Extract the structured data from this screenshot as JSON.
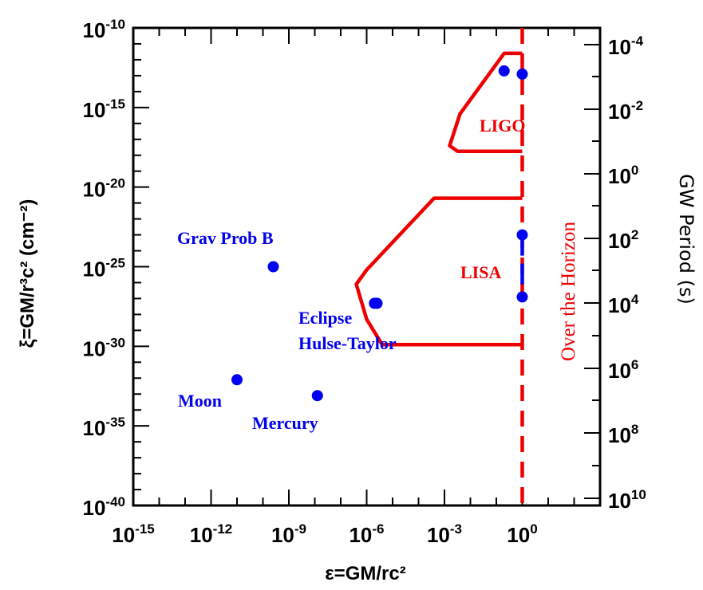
{
  "chart_data": {
    "type": "scatter",
    "x_axis": {
      "label": "ε=GM/rc²",
      "scale": "log",
      "range_exp": [
        -15,
        3
      ],
      "major_tick_exps": [
        -15,
        -12,
        -9,
        -6,
        -3,
        0
      ],
      "tick_labels": [
        "10⁻¹⁵",
        "10⁻¹²",
        "10⁻⁹",
        "10⁻⁶",
        "10⁻³",
        "10⁰"
      ]
    },
    "y_axis_left": {
      "label": "ξ=GM/r³c² (cm⁻²)",
      "scale": "log",
      "range_exp": [
        -40,
        -10
      ],
      "major_tick_exps": [
        -40,
        -35,
        -30,
        -25,
        -20,
        -15,
        -10
      ],
      "tick_labels": [
        "10⁻⁴⁰",
        "10⁻³⁵",
        "10⁻³⁰",
        "10⁻²⁵",
        "10⁻²⁰",
        "10⁻¹⁵",
        "10⁻¹⁰"
      ]
    },
    "y_axis_right": {
      "label": "GW Period (s)",
      "scale": "log",
      "tick_exps": [
        10,
        8,
        6,
        4,
        2,
        0,
        -2,
        -4
      ],
      "tick_labels": [
        "10¹⁰",
        "10⁸",
        "10⁶",
        "10⁴",
        "10²",
        "10⁰",
        "10⁻²",
        "10⁻⁴"
      ]
    },
    "points": [
      {
        "x_exp": -11.0,
        "y_exp": -32.1
      },
      {
        "x_exp": -9.6,
        "y_exp": -25.0
      },
      {
        "x_exp": -7.9,
        "y_exp": -33.1
      },
      {
        "x_exp": -5.7,
        "y_exp": -27.3
      },
      {
        "x_exp": -5.6,
        "y_exp": -27.3
      },
      {
        "x_exp": -0.7,
        "y_exp": -12.7
      },
      {
        "x_exp": 0.0,
        "y_exp": -12.9
      },
      {
        "x_exp": 0.0,
        "y_exp": -23.0
      },
      {
        "x_exp": 0.0,
        "y_exp": -26.9
      }
    ],
    "segments": [
      {
        "x_exp": [
          0.0,
          0.0
        ],
        "y_exp": [
          -23.0,
          -26.9
        ],
        "color": "#0000ee"
      }
    ],
    "regions": [
      {
        "label": "LIGO",
        "polyline_exp": [
          [
            0.0,
            -11.6
          ],
          [
            -0.7,
            -11.6
          ],
          [
            -2.4,
            -15.4
          ],
          [
            -2.8,
            -17.4
          ],
          [
            -2.5,
            -17.75
          ],
          [
            -1.6,
            -17.75
          ],
          [
            0.0,
            -17.75
          ]
        ]
      },
      {
        "label": "LISA",
        "polyline_exp": [
          [
            0.0,
            -20.7
          ],
          [
            -3.4,
            -20.7
          ],
          [
            -6.0,
            -25.2
          ],
          [
            -6.4,
            -26.1
          ],
          [
            -6.0,
            -28.3
          ],
          [
            -5.4,
            -29.9
          ],
          [
            -3.2,
            -29.9
          ],
          [
            0.0,
            -29.9
          ]
        ]
      }
    ],
    "vertical_line": {
      "x_exp": 0.0,
      "style": "dashed",
      "color": "#ee0000",
      "label": "Over the Horizon"
    },
    "annotations": [
      {
        "text": "Grav Prob B",
        "color": "#0000ee"
      },
      {
        "text": "Eclipse",
        "color": "#0000ee"
      },
      {
        "text": "Hulse-Taylor",
        "color": "#0000ee"
      },
      {
        "text": "Moon",
        "color": "#0000ee"
      },
      {
        "text": "Mercury",
        "color": "#0000ee"
      },
      {
        "text": "LIGO",
        "color": "#ee0000"
      },
      {
        "text": "LISA",
        "color": "#ee0000"
      }
    ],
    "colors": {
      "points": "#0000ee",
      "regions": "#ee0000",
      "axes": "#000000"
    },
    "grid": false,
    "legend": "none"
  }
}
